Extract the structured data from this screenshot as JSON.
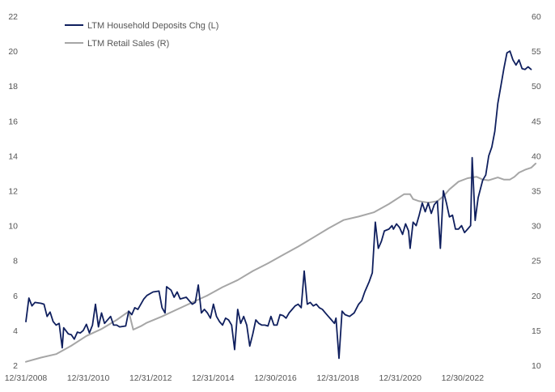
{
  "chart_data": {
    "type": "line",
    "title": "",
    "xlabel": "",
    "ylabel_left": "",
    "ylabel_right": "",
    "grid": false,
    "legend_position": "top-left",
    "x_ticks": [
      "12/31/2008",
      "12/31/2010",
      "12/31/2012",
      "12/31/2014",
      "12/30/2016",
      "12/31/2018",
      "12/31/2020",
      "12/30/2022"
    ],
    "x_range": [
      2008.0,
      2024.5
    ],
    "y_left_ticks": [
      2,
      4,
      6,
      8,
      10,
      12,
      14,
      16,
      18,
      20,
      22
    ],
    "y_left_range": [
      2,
      22
    ],
    "y_right_ticks": [
      10,
      15,
      20,
      25,
      30,
      35,
      40,
      45,
      50,
      55,
      60
    ],
    "y_right_range": [
      10,
      60
    ],
    "series": [
      {
        "name": "LTM Household Deposits Chg (L)",
        "axis": "left",
        "color": "#0f1f5e",
        "points": [
          [
            2008.0,
            4.5
          ],
          [
            2008.1,
            5.85
          ],
          [
            2008.2,
            5.4
          ],
          [
            2008.3,
            5.6
          ],
          [
            2008.5,
            5.55
          ],
          [
            2008.6,
            5.5
          ],
          [
            2008.7,
            4.8
          ],
          [
            2008.8,
            5.05
          ],
          [
            2008.9,
            4.5
          ],
          [
            2009.0,
            4.3
          ],
          [
            2009.1,
            4.4
          ],
          [
            2009.2,
            3.0
          ],
          [
            2009.25,
            4.15
          ],
          [
            2009.4,
            3.8
          ],
          [
            2009.5,
            3.75
          ],
          [
            2009.6,
            3.5
          ],
          [
            2009.7,
            3.9
          ],
          [
            2009.8,
            3.85
          ],
          [
            2009.9,
            4.0
          ],
          [
            2010.0,
            4.35
          ],
          [
            2010.1,
            3.85
          ],
          [
            2010.2,
            4.3
          ],
          [
            2010.3,
            5.5
          ],
          [
            2010.4,
            4.2
          ],
          [
            2010.5,
            5.0
          ],
          [
            2010.6,
            4.4
          ],
          [
            2010.8,
            4.8
          ],
          [
            2010.9,
            4.3
          ],
          [
            2011.0,
            4.3
          ],
          [
            2011.1,
            4.2
          ],
          [
            2011.3,
            4.25
          ],
          [
            2011.4,
            5.1
          ],
          [
            2011.5,
            4.9
          ],
          [
            2011.6,
            5.3
          ],
          [
            2011.7,
            5.2
          ],
          [
            2011.8,
            5.5
          ],
          [
            2011.9,
            5.8
          ],
          [
            2012.0,
            6.0
          ],
          [
            2012.2,
            6.2
          ],
          [
            2012.4,
            6.25
          ],
          [
            2012.5,
            5.3
          ],
          [
            2012.6,
            5.0
          ],
          [
            2012.65,
            6.5
          ],
          [
            2012.8,
            6.3
          ],
          [
            2012.9,
            5.9
          ],
          [
            2013.0,
            6.2
          ],
          [
            2013.1,
            5.8
          ],
          [
            2013.3,
            5.9
          ],
          [
            2013.4,
            5.7
          ],
          [
            2013.5,
            5.5
          ],
          [
            2013.6,
            5.6
          ],
          [
            2013.7,
            6.6
          ],
          [
            2013.8,
            5.0
          ],
          [
            2013.9,
            5.2
          ],
          [
            2014.0,
            5.0
          ],
          [
            2014.1,
            4.7
          ],
          [
            2014.2,
            5.5
          ],
          [
            2014.3,
            4.8
          ],
          [
            2014.4,
            4.5
          ],
          [
            2014.5,
            4.3
          ],
          [
            2014.6,
            4.7
          ],
          [
            2014.7,
            4.6
          ],
          [
            2014.8,
            4.3
          ],
          [
            2014.9,
            2.9
          ],
          [
            2015.0,
            5.2
          ],
          [
            2015.1,
            4.4
          ],
          [
            2015.2,
            4.8
          ],
          [
            2015.3,
            4.3
          ],
          [
            2015.4,
            3.1
          ],
          [
            2015.5,
            3.8
          ],
          [
            2015.6,
            4.6
          ],
          [
            2015.7,
            4.4
          ],
          [
            2015.8,
            4.3
          ],
          [
            2015.9,
            4.3
          ],
          [
            2016.0,
            4.25
          ],
          [
            2016.1,
            4.8
          ],
          [
            2016.2,
            4.3
          ],
          [
            2016.3,
            4.3
          ],
          [
            2016.4,
            4.9
          ],
          [
            2016.5,
            4.85
          ],
          [
            2016.6,
            4.7
          ],
          [
            2016.7,
            5.0
          ],
          [
            2016.8,
            5.2
          ],
          [
            2016.9,
            5.4
          ],
          [
            2017.0,
            5.5
          ],
          [
            2017.1,
            5.3
          ],
          [
            2017.2,
            7.4
          ],
          [
            2017.3,
            5.5
          ],
          [
            2017.4,
            5.6
          ],
          [
            2017.5,
            5.4
          ],
          [
            2017.6,
            5.5
          ],
          [
            2017.7,
            5.3
          ],
          [
            2017.8,
            5.2
          ],
          [
            2017.9,
            5.0
          ],
          [
            2018.0,
            4.8
          ],
          [
            2018.1,
            4.6
          ],
          [
            2018.2,
            4.4
          ],
          [
            2018.25,
            4.7
          ],
          [
            2018.35,
            2.4
          ],
          [
            2018.45,
            5.1
          ],
          [
            2018.55,
            4.9
          ],
          [
            2018.7,
            4.8
          ],
          [
            2018.85,
            5.0
          ],
          [
            2019.0,
            5.5
          ],
          [
            2019.1,
            5.7
          ],
          [
            2019.2,
            6.2
          ],
          [
            2019.35,
            6.8
          ],
          [
            2019.45,
            7.3
          ],
          [
            2019.55,
            10.2
          ],
          [
            2019.65,
            8.7
          ],
          [
            2019.75,
            9.1
          ],
          [
            2019.85,
            9.7
          ],
          [
            2020.0,
            9.8
          ],
          [
            2020.1,
            10.0
          ],
          [
            2020.15,
            9.8
          ],
          [
            2020.25,
            10.1
          ],
          [
            2020.35,
            9.9
          ],
          [
            2020.45,
            9.5
          ],
          [
            2020.55,
            10.1
          ],
          [
            2020.65,
            9.7
          ],
          [
            2020.7,
            8.7
          ],
          [
            2020.8,
            10.2
          ],
          [
            2020.9,
            10.0
          ],
          [
            2021.0,
            10.6
          ],
          [
            2021.1,
            11.3
          ],
          [
            2021.2,
            10.8
          ],
          [
            2021.3,
            11.3
          ],
          [
            2021.4,
            10.7
          ],
          [
            2021.5,
            11.2
          ],
          [
            2021.6,
            11.4
          ],
          [
            2021.7,
            8.7
          ],
          [
            2021.8,
            12.0
          ],
          [
            2021.9,
            11.3
          ],
          [
            2022.0,
            10.5
          ],
          [
            2022.1,
            10.6
          ],
          [
            2022.2,
            9.8
          ],
          [
            2022.3,
            9.8
          ],
          [
            2022.4,
            10.0
          ],
          [
            2022.5,
            9.6
          ],
          [
            2022.6,
            9.8
          ],
          [
            2022.7,
            10.0
          ],
          [
            2022.75,
            13.9
          ],
          [
            2022.85,
            10.3
          ],
          [
            2022.95,
            11.6
          ],
          [
            2023.1,
            12.6
          ],
          [
            2023.2,
            12.9
          ],
          [
            2023.3,
            14.0
          ],
          [
            2023.4,
            14.5
          ],
          [
            2023.5,
            15.4
          ],
          [
            2023.6,
            17.0
          ],
          [
            2023.7,
            18.0
          ],
          [
            2023.8,
            19.0
          ],
          [
            2023.9,
            19.9
          ],
          [
            2024.0,
            20.0
          ],
          [
            2024.1,
            19.5
          ],
          [
            2024.2,
            19.2
          ],
          [
            2024.3,
            19.5
          ],
          [
            2024.4,
            19.0
          ],
          [
            2024.5,
            18.95
          ],
          [
            2024.6,
            19.1
          ],
          [
            2024.7,
            18.95
          ]
        ]
      },
      {
        "name": "LTM Retail Sales (R)",
        "axis": "right",
        "color": "#a6a6a6",
        "points": [
          [
            2008.0,
            10.5
          ],
          [
            2008.5,
            11.1
          ],
          [
            2009.0,
            11.6
          ],
          [
            2009.5,
            12.8
          ],
          [
            2010.0,
            14.2
          ],
          [
            2010.5,
            15.2
          ],
          [
            2011.0,
            16.5
          ],
          [
            2011.4,
            17.7
          ],
          [
            2011.55,
            15.1
          ],
          [
            2011.8,
            15.6
          ],
          [
            2012.0,
            16.1
          ],
          [
            2012.5,
            17.0
          ],
          [
            2013.0,
            18.0
          ],
          [
            2013.5,
            19.0
          ],
          [
            2014.0,
            20.0
          ],
          [
            2014.5,
            21.2
          ],
          [
            2015.0,
            22.2
          ],
          [
            2015.5,
            23.5
          ],
          [
            2016.0,
            24.6
          ],
          [
            2016.5,
            25.8
          ],
          [
            2017.0,
            27.0
          ],
          [
            2017.5,
            28.3
          ],
          [
            2018.0,
            29.6
          ],
          [
            2018.5,
            30.8
          ],
          [
            2019.0,
            31.3
          ],
          [
            2019.5,
            31.9
          ],
          [
            2020.0,
            33.1
          ],
          [
            2020.5,
            34.5
          ],
          [
            2020.7,
            34.5
          ],
          [
            2020.8,
            33.8
          ],
          [
            2021.0,
            33.5
          ],
          [
            2021.3,
            33.3
          ],
          [
            2021.6,
            33.5
          ],
          [
            2021.8,
            34.2
          ],
          [
            2022.0,
            35.2
          ],
          [
            2022.3,
            36.3
          ],
          [
            2022.6,
            36.8
          ],
          [
            2022.9,
            37.0
          ],
          [
            2023.1,
            36.6
          ],
          [
            2023.3,
            36.5
          ],
          [
            2023.6,
            36.9
          ],
          [
            2023.8,
            36.6
          ],
          [
            2024.0,
            36.6
          ],
          [
            2024.15,
            37.0
          ],
          [
            2024.3,
            37.6
          ],
          [
            2024.5,
            38.0
          ],
          [
            2024.7,
            38.3
          ],
          [
            2024.85,
            38.9
          ]
        ]
      }
    ]
  }
}
